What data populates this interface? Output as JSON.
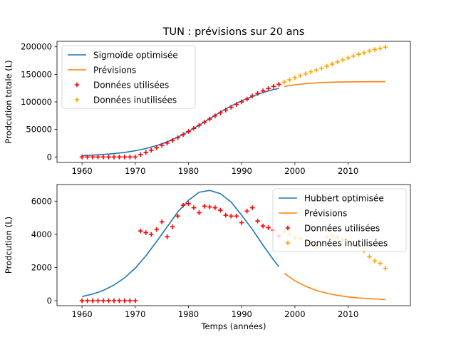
{
  "figure": {
    "title": "TUN : prévisions sur 20 ans"
  },
  "chart_data": [
    {
      "type": "line",
      "title": "TUN : prévisions sur 20 ans",
      "xlabel": "",
      "ylabel": "Prodcution totale (L)",
      "xlim": [
        1955.3,
        2021.7
      ],
      "ylim": [
        -10000,
        210000
      ],
      "xticks": [
        1960,
        1970,
        1980,
        1990,
        2000,
        2010
      ],
      "yticks": [
        0,
        50000,
        100000,
        150000,
        200000
      ],
      "ytick_labels": [
        "0",
        "50000",
        "100000",
        "150000",
        "200000"
      ],
      "legend_position": "upper-left",
      "colors": {
        "fit": "#1f77b4",
        "forecast": "#ff7f0e",
        "used": "#ff0000",
        "unused": "#ffa500"
      },
      "series": [
        {
          "name": "Sigmoïde optimisée",
          "kind": "line",
          "x": [
            1960,
            1962,
            1964,
            1966,
            1968,
            1970,
            1972,
            1974,
            1976,
            1978,
            1980,
            1982,
            1984,
            1986,
            1988,
            1990,
            1992,
            1994,
            1996,
            1997
          ],
          "y": [
            2500,
            3300,
            4500,
            6100,
            8300,
            11200,
            15200,
            20500,
            27400,
            36000,
            46200,
            57600,
            69700,
            81500,
            92500,
            102000,
            110000,
            117000,
            122500,
            124500
          ]
        },
        {
          "name": "Prévisions",
          "kind": "line",
          "x": [
            1998,
            2000,
            2002,
            2004,
            2006,
            2008,
            2010,
            2012,
            2014,
            2016,
            2017
          ],
          "y": [
            128000,
            131000,
            133000,
            134500,
            135500,
            136000,
            136300,
            136500,
            136600,
            136650,
            136700
          ]
        },
        {
          "name": "Données utilisées",
          "kind": "scatter",
          "x": [
            1960,
            1961,
            1962,
            1963,
            1964,
            1965,
            1966,
            1967,
            1968,
            1969,
            1970,
            1971,
            1972,
            1973,
            1974,
            1975,
            1976,
            1977,
            1978,
            1979,
            1980,
            1981,
            1982,
            1983,
            1984,
            1985,
            1986,
            1987,
            1988,
            1989,
            1990,
            1991,
            1992,
            1993,
            1994,
            1995,
            1996,
            1997
          ],
          "y": [
            0,
            0,
            0,
            0,
            0,
            0,
            0,
            0,
            0,
            0,
            0,
            4200,
            8300,
            12300,
            16600,
            21300,
            25200,
            29700,
            34800,
            40500,
            46200,
            51800,
            57500,
            63200,
            68900,
            74500,
            80000,
            85200,
            90300,
            95400,
            100100,
            105100,
            110700,
            115500,
            120000,
            124200,
            128100,
            131800
          ]
        },
        {
          "name": "Données inutilisées",
          "kind": "scatter",
          "x": [
            1998,
            1999,
            2000,
            2001,
            2002,
            2003,
            2004,
            2005,
            2006,
            2007,
            2008,
            2009,
            2010,
            2011,
            2012,
            2013,
            2014,
            2015,
            2016,
            2017
          ],
          "y": [
            136000,
            140000,
            143800,
            147500,
            151000,
            154500,
            157700,
            161000,
            164800,
            168700,
            172500,
            176200,
            179800,
            183200,
            186500,
            189200,
            192500,
            195000,
            197200,
            199500
          ]
        }
      ]
    },
    {
      "type": "line",
      "title": "",
      "xlabel": "Temps (années)",
      "ylabel": "Prodcution (L)",
      "xlim": [
        1955.3,
        2021.7
      ],
      "ylim": [
        -300,
        7000
      ],
      "xticks": [
        1960,
        1970,
        1980,
        1990,
        2000,
        2010
      ],
      "yticks": [
        0,
        2000,
        4000,
        6000
      ],
      "ytick_labels": [
        "0",
        "2000",
        "4000",
        "6000"
      ],
      "legend_position": "upper-right",
      "colors": {
        "fit": "#1f77b4",
        "forecast": "#ff7f0e",
        "used": "#ff0000",
        "unused": "#ffa500"
      },
      "series": [
        {
          "name": "Hubbert optimisée",
          "kind": "line",
          "x": [
            1960,
            1962,
            1964,
            1966,
            1968,
            1970,
            1972,
            1974,
            1976,
            1978,
            1980,
            1982,
            1984,
            1986,
            1988,
            1990,
            1992,
            1994,
            1996,
            1997
          ],
          "y": [
            250,
            400,
            620,
            940,
            1380,
            1960,
            2700,
            3560,
            4450,
            5350,
            6050,
            6530,
            6650,
            6450,
            5950,
            5150,
            4300,
            3350,
            2450,
            2050
          ]
        },
        {
          "name": "Prévisions",
          "kind": "line",
          "x": [
            1998,
            2000,
            2002,
            2004,
            2006,
            2008,
            2010,
            2012,
            2014,
            2016,
            2017
          ],
          "y": [
            1650,
            1200,
            870,
            620,
            450,
            320,
            230,
            165,
            120,
            85,
            70
          ]
        },
        {
          "name": "Données utilisées",
          "kind": "scatter",
          "x": [
            1960,
            1961,
            1962,
            1963,
            1964,
            1965,
            1966,
            1967,
            1968,
            1969,
            1970,
            1971,
            1972,
            1973,
            1974,
            1975,
            1976,
            1977,
            1978,
            1979,
            1980,
            1981,
            1982,
            1983,
            1984,
            1985,
            1986,
            1987,
            1988,
            1989,
            1990,
            1991,
            1992,
            1993,
            1994,
            1995,
            1996,
            1997
          ],
          "y": [
            0,
            0,
            0,
            0,
            0,
            0,
            0,
            0,
            0,
            0,
            0,
            4200,
            4100,
            4000,
            4300,
            4750,
            3850,
            4450,
            5100,
            5750,
            5850,
            5600,
            5300,
            5700,
            5650,
            5600,
            5450,
            5150,
            5100,
            5100,
            4700,
            5400,
            5600,
            4800,
            4500,
            4400,
            4250,
            3900
          ]
        },
        {
          "name": "Données inutilisées",
          "kind": "scatter",
          "x": [
            1998,
            1999,
            2000,
            2001,
            2002,
            2003,
            2004,
            2005,
            2006,
            2007,
            2008,
            2009,
            2010,
            2011,
            2012,
            2013,
            2014,
            2015,
            2016,
            2017
          ],
          "y": [
            4150,
            4000,
            3800,
            3750,
            3500,
            3500,
            3250,
            3400,
            3850,
            3900,
            3800,
            3700,
            3600,
            3450,
            3300,
            3000,
            2650,
            2400,
            2250,
            1950
          ]
        }
      ]
    }
  ]
}
